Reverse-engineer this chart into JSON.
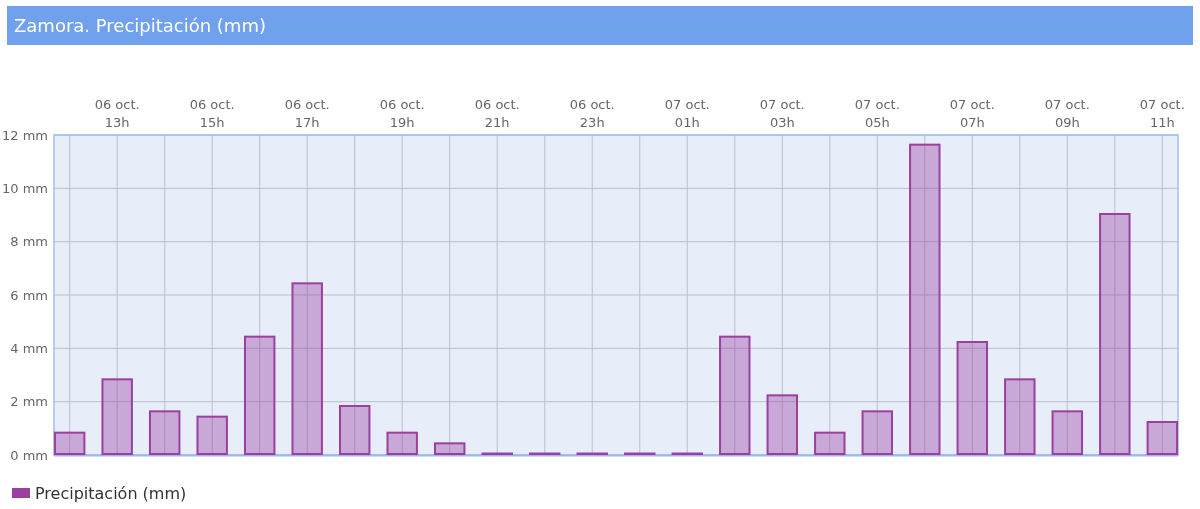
{
  "chart_data": {
    "type": "bar",
    "title": "Zamora. Precipitación (mm)",
    "categories": [
      null,
      "06 oct.\n13h",
      null,
      "06 oct.\n15h",
      null,
      "06 oct.\n17h",
      null,
      "06 oct.\n19h",
      null,
      "06 oct.\n21h",
      null,
      "06 oct.\n23h",
      null,
      "07 oct.\n01h",
      null,
      "07 oct.\n03h",
      null,
      "07 oct.\n05h",
      null,
      "07 oct.\n07h",
      null,
      "07 oct.\n09h",
      null,
      "07 oct.\n11h"
    ],
    "series": [
      {
        "name": "Precipitación (mm)",
        "color": "#9b3fa0",
        "values": [
          0.8,
          2.8,
          1.6,
          1.4,
          4.4,
          6.4,
          1.8,
          0.8,
          0.4,
          0,
          0,
          0,
          0,
          0,
          4.4,
          2.2,
          0.8,
          1.6,
          11.6,
          4.2,
          2.8,
          1.6,
          9.0,
          1.2
        ]
      }
    ],
    "ylim": [
      0,
      12
    ],
    "yticks": [
      {
        "value": 0,
        "label": "0 mm"
      },
      {
        "value": 2,
        "label": "2 mm"
      },
      {
        "value": 4,
        "label": "4 mm"
      },
      {
        "value": 6,
        "label": "6 mm"
      },
      {
        "value": 8,
        "label": "8 mm"
      },
      {
        "value": 10,
        "label": "10 mm"
      },
      {
        "value": 12,
        "label": "12 mm"
      }
    ],
    "grid": true,
    "legend": "bottom left"
  }
}
